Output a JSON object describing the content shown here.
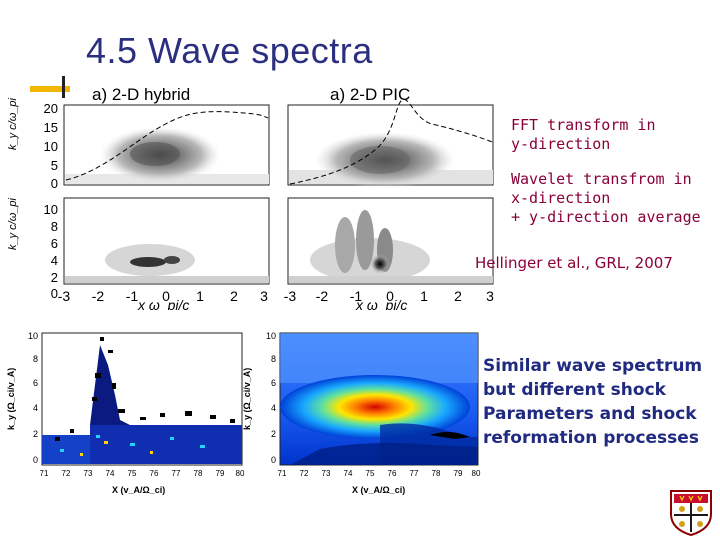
{
  "slide": {
    "title": "4.5 Wave spectra"
  },
  "top_figure": {
    "panel_left_title": "a) 2-D hybrid",
    "panel_right_title": "a) 2-D PIC",
    "upper_y_label": "k_y c/ω_pi",
    "lower_y_label": "k_y c/ω_pi",
    "upper_y_ticks": [
      "20",
      "15",
      "10",
      "5",
      "0"
    ],
    "lower_y_ticks": [
      "10",
      "8",
      "6",
      "4",
      "2",
      "0"
    ],
    "x_ticks_left": [
      "-3",
      "-2",
      "-1",
      "0",
      "1",
      "2",
      "3"
    ],
    "x_ticks_right": [
      "-3",
      "-2",
      "-1",
      "0",
      "1",
      "2",
      "3"
    ],
    "x_label": "x ω_pi/c"
  },
  "bottom_figure": {
    "left_y_label": "k_y (Ω_ci/v_A)",
    "right_y_label": "k_y (Ω_ci/v_A)",
    "y_ticks": [
      "10",
      "8",
      "6",
      "4",
      "2",
      "0"
    ],
    "x_ticks": [
      "71",
      "72",
      "73",
      "74",
      "75",
      "76",
      "77",
      "78",
      "79",
      "80"
    ],
    "x_label": "X (v_A/Ω_ci)"
  },
  "notes": {
    "fft_line1": "FFT transform in",
    "fft_line2": "y-direction",
    "wavelet_line1": "Wavelet transfrom in",
    "wavelet_line2": "x-direction",
    "wavelet_line3": "+ y-direction average",
    "reference": "Hellinger et al., GRL, 2007",
    "similar_line1": "Similar wave spectrum",
    "similar_line2": "but different shock",
    "similar_line3": "Parameters and shock",
    "similar_line4": "reformation processes"
  },
  "colors": {
    "title": "#2b2f7f",
    "accent": "#f2b705",
    "note_red": "#8b0038",
    "note_blue": "#1f2a80"
  }
}
